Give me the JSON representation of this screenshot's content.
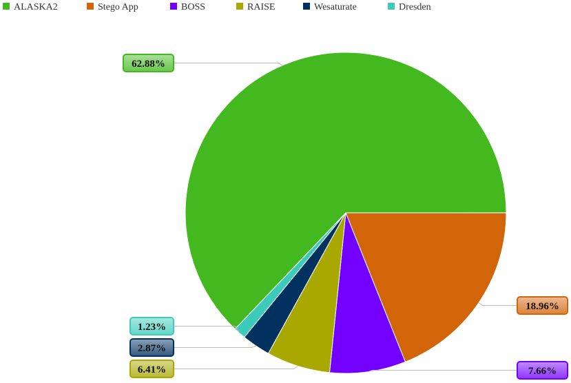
{
  "chart_data": {
    "type": "pie",
    "title": "",
    "legend_position": "top-left",
    "series": [
      {
        "name": "ALASKA2",
        "value": 62.88,
        "label": "62.88%",
        "color": "#43b91f"
      },
      {
        "name": "Stego App",
        "value": 18.96,
        "label": "18.96%",
        "color": "#d2640a"
      },
      {
        "name": "BOSS",
        "value": 7.66,
        "label": "7.66%",
        "color": "#7300ff"
      },
      {
        "name": "RAISE",
        "value": 6.41,
        "label": "6.41%",
        "color": "#a9a800"
      },
      {
        "name": "Wesaturate",
        "value": 2.87,
        "label": "2.87%",
        "color": "#00315f"
      },
      {
        "name": "Dresden",
        "value": 1.23,
        "label": "1.23%",
        "color": "#3ccbbb"
      }
    ]
  }
}
